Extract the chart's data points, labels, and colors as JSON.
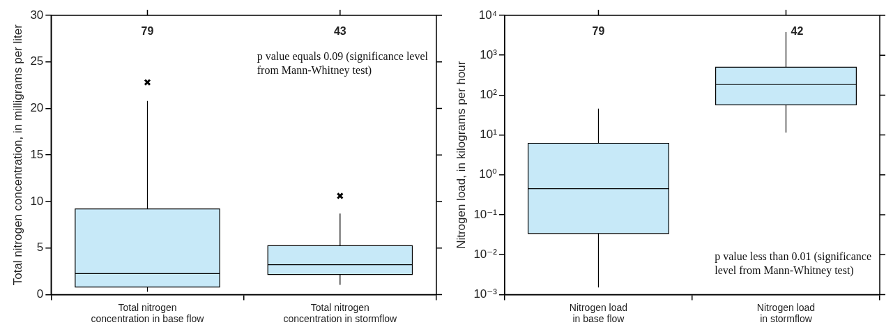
{
  "chart_data": [
    {
      "type": "box",
      "ylabel": "Total nitrogen concentration, in milligrams per liter",
      "categories": [
        "Total nitrogen\nconcentration in base flow",
        "Total nitrogen\nconcentration in stormflow"
      ],
      "color": "#c7e9f8",
      "boxes": [
        {
          "low": 0.3,
          "q1": 0.8,
          "median": 2.25,
          "q3": 9.2,
          "high": 20.8,
          "outliers": [
            22.8
          ]
        },
        {
          "low": 1.05,
          "q1": 2.15,
          "median": 3.2,
          "q3": 5.25,
          "high": 8.7,
          "outliers": [
            10.6
          ]
        }
      ],
      "ylim": [
        0,
        30
      ],
      "yticks": [
        0,
        5,
        10,
        15,
        20,
        25,
        30
      ],
      "marker": "cross",
      "annotations": [
        "79",
        "43",
        "p value equals 0.09 (significance level from Mann-Whitney test)"
      ]
    },
    {
      "type": "box",
      "ylabel": "Nitrogen load, in kilograms per hour",
      "categories": [
        "Nitrogen load\nin base flow",
        "Nitrogen load\nin stormflow"
      ],
      "color": "#c7e9f8",
      "boxes": [
        {
          "low": 0.0015,
          "q1": 0.034,
          "median": 0.45,
          "q3": 6.2,
          "high": 46
        },
        {
          "low": 11.4,
          "q1": 57,
          "median": 184,
          "q3": 500,
          "high": 3800
        }
      ],
      "log": "y",
      "ylim": [
        0.001,
        10000
      ],
      "yticks": [
        {
          "value": 0.001,
          "label": "10⁻³"
        },
        {
          "value": 0.01,
          "label": "10⁻²"
        },
        {
          "value": 0.1,
          "label": "10⁻¹"
        },
        {
          "value": 1,
          "label": "10⁰"
        },
        {
          "value": 10,
          "label": "10¹"
        },
        {
          "value": 100,
          "label": "10²"
        },
        {
          "value": 1000,
          "label": "10³"
        },
        {
          "value": 10000,
          "label": "10⁴"
        }
      ],
      "annotations": [
        "79",
        "42",
        "p value less than 0.01 (significance level from Mann-Whitney test)"
      ]
    }
  ]
}
